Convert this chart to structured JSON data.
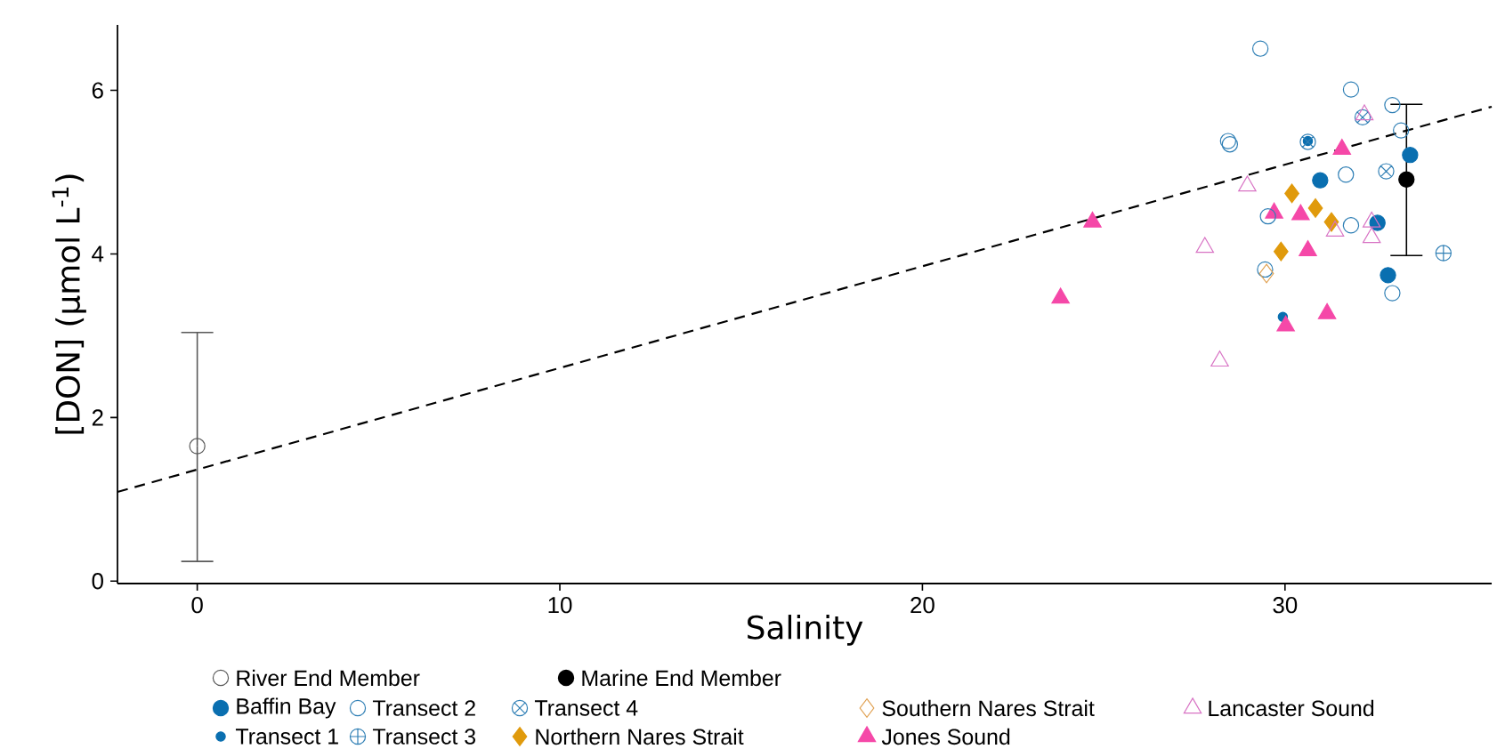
{
  "chart_data": {
    "type": "scatter",
    "xlabel": "Salinity",
    "ylabel": "[DON] (µmol L$^{-1}$)",
    "xlim": [
      -2.2,
      35.7
    ],
    "ylim": [
      -0.03,
      6.8
    ],
    "xticks": [
      0,
      10,
      20,
      30
    ],
    "yticks": [
      0,
      2,
      4,
      6
    ],
    "grid": false,
    "legend": "bottom",
    "series": [
      {
        "name": "River End Member",
        "color": "#595959",
        "marker": "circle",
        "x": [
          0
        ],
        "values": [
          1.65
        ],
        "errors": [
          [
            0.24,
            3.04
          ]
        ]
      },
      {
        "name": "Marine End Member",
        "color": "#000000",
        "marker": "circle",
        "x": [
          33.35
        ],
        "values": [
          4.91
        ],
        "errors": [
          [
            3.98,
            5.83
          ]
        ]
      },
      {
        "name": "Baffin Bay",
        "color": "#0a6fb0",
        "marker": "circle",
        "x": [
          33.45,
          30.97,
          32.55,
          32.84
        ],
        "values": [
          5.21,
          4.9,
          4.38,
          3.74
        ]
      },
      {
        "name": "Transect 1",
        "color": "#0a6fb0",
        "marker": "circle",
        "x": [
          30.63,
          29.94
        ],
        "values": [
          5.38,
          3.23
        ]
      },
      {
        "name": "Transect 2",
        "color": "#2f7fb5",
        "marker": "circle",
        "x": [
          29.32,
          31.82,
          32.96,
          28.43,
          28.48,
          33.2,
          31.68,
          29.53,
          31.82,
          29.45,
          32.96
        ],
        "values": [
          6.51,
          6.01,
          5.82,
          5.38,
          5.34,
          5.51,
          4.97,
          4.46,
          4.35,
          3.81,
          3.52
        ]
      },
      {
        "name": "Transect 3",
        "color": "#2f7fb5",
        "marker": "cross",
        "x": [
          34.37
        ],
        "values": [
          4.01
        ]
      },
      {
        "name": "Transect 4",
        "color": "#2f7fb5",
        "marker": "cross",
        "x": [
          32.14,
          30.63,
          32.79
        ],
        "values": [
          5.67,
          5.37,
          5.01
        ]
      },
      {
        "name": "Northern Nares Strait",
        "color": "#e09a0c",
        "marker": "diamond",
        "x": [
          30.19,
          30.84,
          31.28,
          29.89
        ],
        "values": [
          4.74,
          4.56,
          4.39,
          4.03
        ]
      },
      {
        "name": "Southern Nares Strait",
        "color": "#e0a050",
        "marker": "diamond",
        "x": [
          29.49
        ],
        "values": [
          3.76
        ]
      },
      {
        "name": "Jones Sound",
        "color": "#f548a8",
        "marker": "triangle",
        "x": [
          31.57,
          29.7,
          30.43,
          30.63,
          31.16,
          30.02,
          24.69,
          23.81
        ],
        "values": [
          5.28,
          4.5,
          4.48,
          4.04,
          3.27,
          3.12,
          4.39,
          3.46
        ]
      },
      {
        "name": "Lancaster Sound",
        "color": "#d873c4",
        "marker": "triangle",
        "x": [
          32.19,
          28.96,
          27.79,
          31.38,
          32.39,
          32.39,
          28.2
        ],
        "values": [
          5.7,
          4.83,
          4.08,
          4.28,
          4.39,
          4.2,
          2.69
        ]
      },
      {
        "type": "line",
        "color": "#000000",
        "line_style": "dashed",
        "marker": "none",
        "x": [
          -2.2,
          35.7
        ],
        "values": [
          1.09,
          5.8
        ]
      }
    ]
  }
}
